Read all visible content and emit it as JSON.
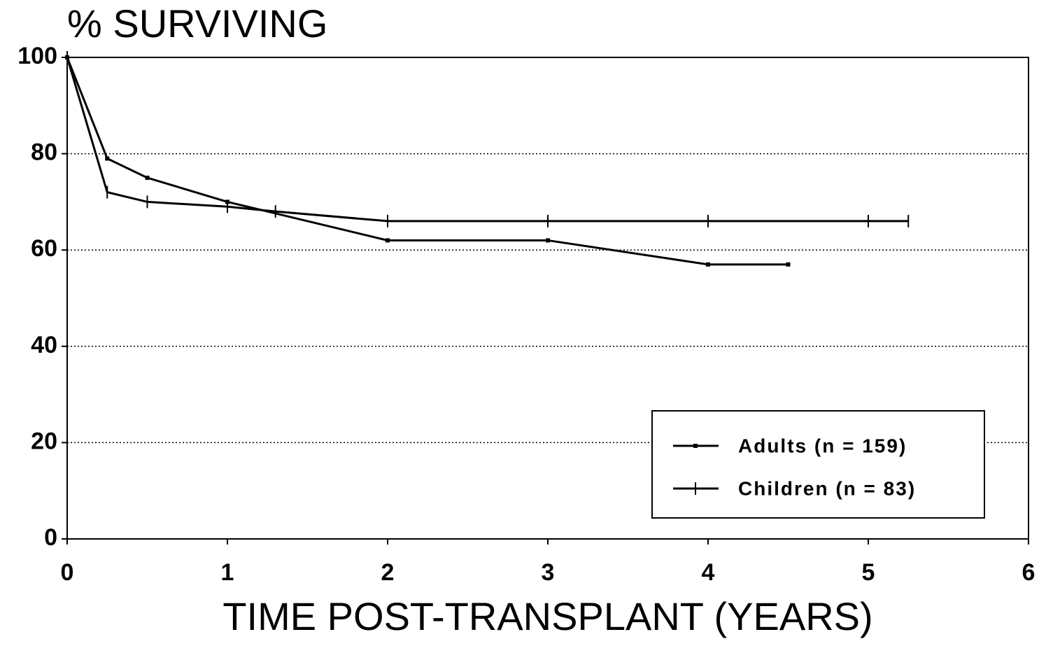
{
  "chart_data": {
    "type": "line",
    "title": "% SURVIVING",
    "x_label": "TIME POST-TRANSPLANT (YEARS)",
    "xlim": [
      0,
      6
    ],
    "xticks": [
      0,
      1,
      2,
      3,
      4,
      5,
      6
    ],
    "ylim": [
      0,
      100
    ],
    "yticks": [
      0,
      20,
      40,
      60,
      80,
      100
    ],
    "grid": true,
    "legend": "lower right",
    "series": [
      {
        "name": "Adults  (n = 159)",
        "color": "#000000",
        "marker": "dot",
        "x": [
          0,
          0.25,
          0.5,
          1,
          2,
          3,
          4,
          4.5
        ],
        "values": [
          100,
          79,
          75,
          70,
          62,
          62,
          57,
          57
        ]
      },
      {
        "name": "Children (n = 83)",
        "color": "#000000",
        "marker": "plus",
        "x": [
          0,
          0.25,
          0.5,
          1,
          1.3,
          2,
          3,
          4,
          5,
          5.25
        ],
        "values": [
          100,
          72,
          70,
          69,
          68,
          66,
          66,
          66,
          66,
          66
        ]
      }
    ]
  }
}
